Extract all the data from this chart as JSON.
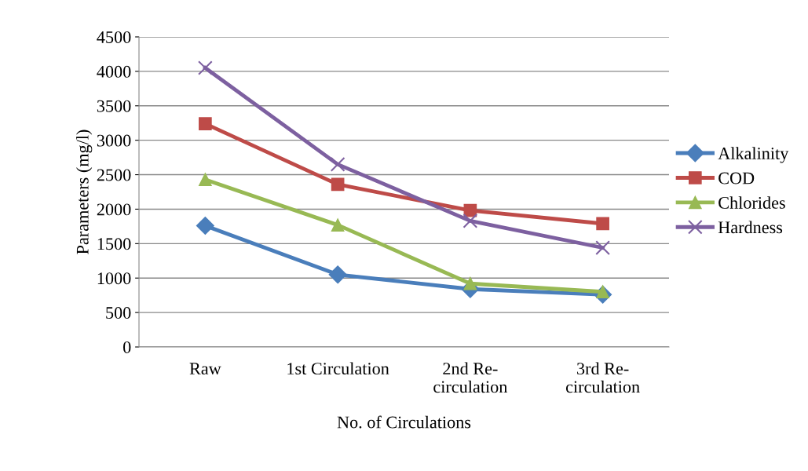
{
  "chart_data": {
    "type": "line",
    "xlabel": "No. of Circulations",
    "ylabel": "Parameters (mg/l)",
    "categories": [
      "Raw",
      "1st Circulation",
      "2nd Re-\ncirculation",
      "3rd Re-\ncirculation"
    ],
    "series": [
      {
        "name": "Alkalinity",
        "color": "#4a7ebb",
        "marker": "diamond",
        "values": [
          1760,
          1050,
          840,
          760
        ]
      },
      {
        "name": "COD",
        "color": "#be4b48",
        "marker": "square",
        "values": [
          3240,
          2360,
          1980,
          1790
        ]
      },
      {
        "name": "Chlorides",
        "color": "#98b954",
        "marker": "triangle",
        "values": [
          2430,
          1770,
          920,
          800
        ]
      },
      {
        "name": "Hardness",
        "color": "#7d60a0",
        "marker": "cross",
        "values": [
          4050,
          2650,
          1830,
          1440
        ]
      }
    ],
    "ylim": [
      0,
      4500
    ],
    "yticks": [
      0,
      500,
      1000,
      1500,
      2000,
      2500,
      3000,
      3500,
      4000,
      4500
    ],
    "grid": "y",
    "legend": "right",
    "line_style": "solid"
  }
}
